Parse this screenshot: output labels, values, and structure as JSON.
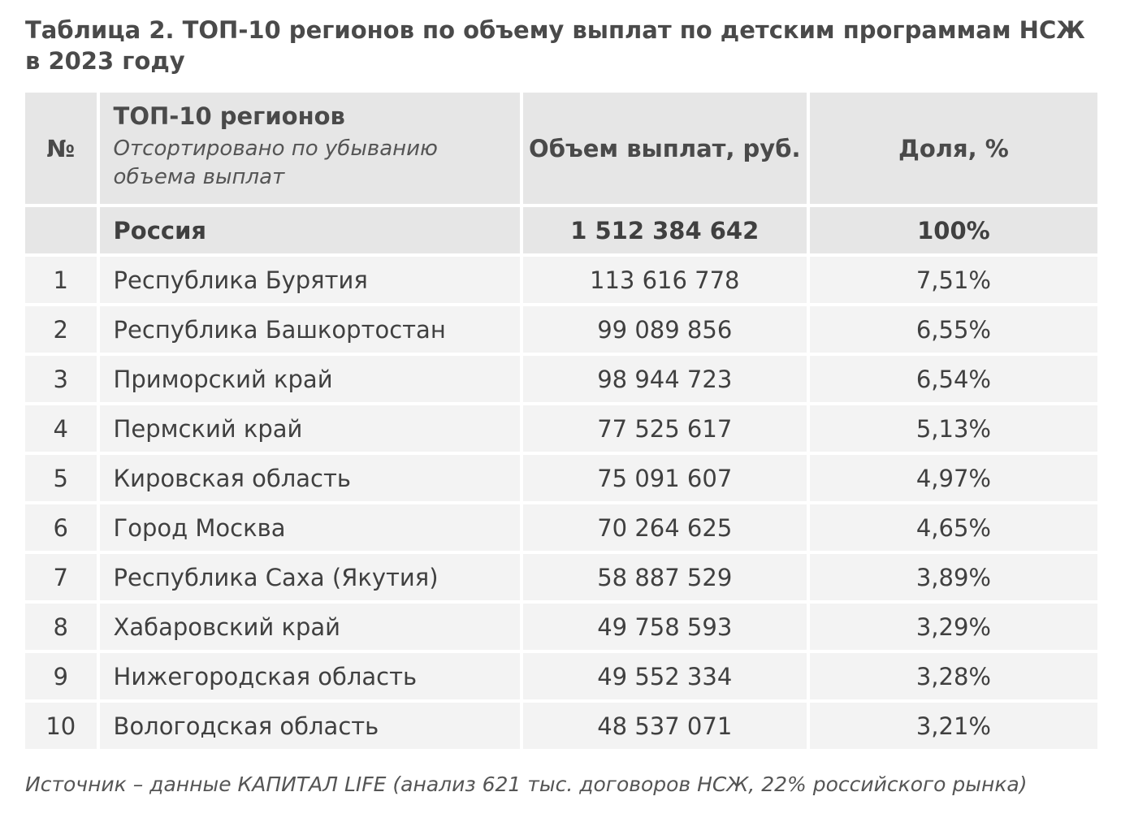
{
  "title": "Таблица 2. ТОП-10 регионов по объему выплат по детским программам НСЖ в 2023 году",
  "table": {
    "headers": {
      "num": "№",
      "region": "ТОП-10 регионов",
      "region_note": "Отсортировано по убыванию объема выплат",
      "volume": "Объем выплат, руб.",
      "share": "Доля, %"
    },
    "total": {
      "num": "",
      "region": "Россия",
      "volume": "1 512 384 642",
      "share": "100%"
    },
    "rows": [
      {
        "num": "1",
        "region": "Республика Бурятия",
        "volume": "113 616 778",
        "share": "7,51%"
      },
      {
        "num": "2",
        "region": "Республика Башкортостан",
        "volume": "99 089 856",
        "share": "6,55%"
      },
      {
        "num": "3",
        "region": "Приморский край",
        "volume": "98 944 723",
        "share": "6,54%"
      },
      {
        "num": "4",
        "region": "Пермский край",
        "volume": "77 525 617",
        "share": "5,13%"
      },
      {
        "num": "5",
        "region": "Кировская область",
        "volume": "75 091 607",
        "share": "4,97%"
      },
      {
        "num": "6",
        "region": "Город Москва",
        "volume": "70 264 625",
        "share": "4,65%"
      },
      {
        "num": "7",
        "region": "Республика Саха (Якутия)",
        "volume": "58 887 529",
        "share": "3,89%"
      },
      {
        "num": "8",
        "region": "Хабаровский край",
        "volume": "49 758 593",
        "share": "3,29%"
      },
      {
        "num": "9",
        "region": "Нижегородская область",
        "volume": "49 552 334",
        "share": "3,28%"
      },
      {
        "num": "10",
        "region": "Вологодская область",
        "volume": "48 537 071",
        "share": "3,21%"
      }
    ]
  },
  "source": "Источник – данные КАПИТАЛ LIFE (анализ 621 тыс. договоров НСЖ, 22% российского рынка)",
  "colors": {
    "header_bg": "#e6e6e6",
    "row_bg": "#f3f3f3",
    "text": "#404040"
  }
}
